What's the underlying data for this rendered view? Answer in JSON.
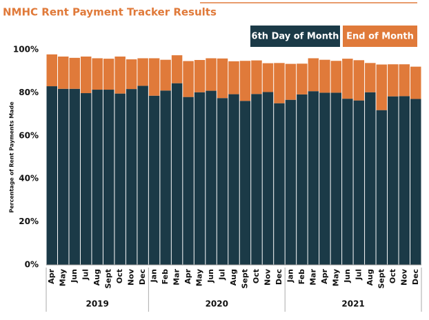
{
  "chart_data": {
    "type": "stacked_bar",
    "title": "NMHC Rent Payment Tracker Results",
    "y_label": "Percentage of Rent Payments Made",
    "groups": [
      {
        "label": "2019",
        "categories": [
          "Apr",
          "May",
          "Jun",
          "Jul",
          "Aug",
          "Sept",
          "Oct",
          "Nov",
          "Dec"
        ]
      },
      {
        "label": "2020",
        "categories": [
          "Jan",
          "Feb",
          "Mar",
          "Apr",
          "May",
          "Jun",
          "Jul",
          "Aug",
          "Sept",
          "Oct",
          "Nov",
          "Dec"
        ]
      },
      {
        "label": "2021",
        "categories": [
          "Jan",
          "Feb",
          "Mar",
          "Apr",
          "May",
          "Jun",
          "Jul",
          "Aug",
          "Sept",
          "Oct",
          "Nov",
          "Dec"
        ]
      }
    ],
    "series": [
      {
        "name": "6th Day of Month",
        "color": "#1b3a47",
        "values": [
          83.0,
          81.8,
          81.8,
          79.8,
          81.4,
          81.4,
          79.6,
          81.7,
          83.2,
          78.6,
          81.0,
          84.4,
          78.0,
          80.2,
          80.9,
          77.5,
          79.3,
          76.2,
          79.4,
          80.3,
          75.1,
          76.7,
          79.2,
          80.7,
          80.0,
          80.0,
          77.2,
          76.4,
          80.2,
          71.9,
          78.3,
          78.4,
          77.1
        ]
      },
      {
        "name": "End of Month",
        "color": "#e07a3a",
        "values": [
          14.8,
          15.0,
          14.4,
          17.0,
          14.6,
          14.4,
          17.2,
          13.8,
          12.8,
          17.4,
          14.3,
          13.0,
          16.7,
          15.0,
          15.1,
          18.4,
          15.3,
          18.6,
          15.6,
          13.4,
          18.7,
          16.7,
          14.3,
          15.3,
          15.3,
          14.8,
          18.6,
          18.7,
          13.6,
          21.2,
          14.9,
          14.8,
          15.0
        ]
      }
    ],
    "ylim": [
      0,
      100
    ],
    "yticks": [
      {
        "value": 0,
        "label": "0%"
      },
      {
        "value": 20,
        "label": "20%"
      },
      {
        "value": 40,
        "label": "40%"
      },
      {
        "value": 60,
        "label": "60%"
      },
      {
        "value": 80,
        "label": "80%"
      },
      {
        "value": 100,
        "label": "100%"
      }
    ]
  }
}
